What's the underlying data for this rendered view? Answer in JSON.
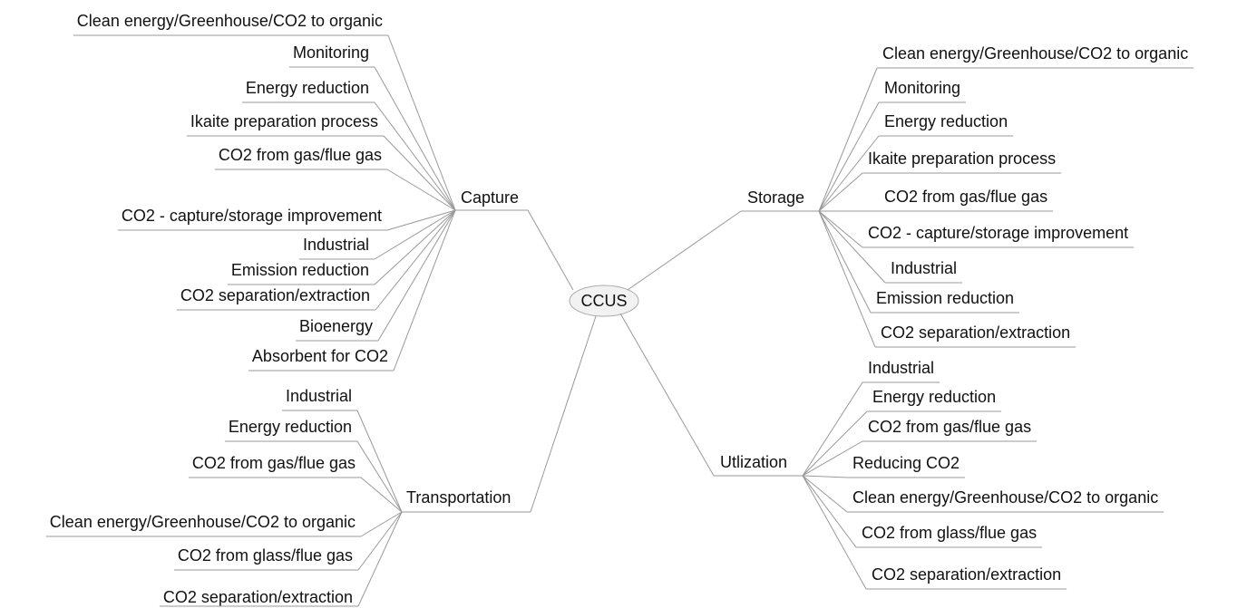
{
  "center": "CCUS",
  "branches": [
    {
      "label": "Capture",
      "children": [
        "Clean energy/Greenhouse/CO2 to organic",
        "Monitoring",
        "Energy reduction",
        "Ikaite preparation process",
        "CO2 from gas/flue gas",
        "CO2 - capture/storage improvement",
        "Industrial",
        "Emission reduction",
        "CO2 separation/extraction",
        "Bioenergy",
        "Absorbent for CO2"
      ]
    },
    {
      "label": "Storage",
      "children": [
        "Clean energy/Greenhouse/CO2 to organic",
        "Monitoring",
        "Energy reduction",
        "Ikaite preparation process",
        "CO2 from gas/flue gas",
        "CO2 - capture/storage improvement",
        "Industrial",
        "Emission reduction",
        "CO2 separation/extraction"
      ]
    },
    {
      "label": "Transportation",
      "children": [
        "Industrial",
        "Energy reduction",
        "CO2 from gas/flue gas",
        "Clean energy/Greenhouse/CO2 to organic",
        "CO2 from glass/flue gas",
        "CO2 separation/extraction"
      ]
    },
    {
      "label": "Utlization",
      "children": [
        "Industrial",
        "Energy reduction",
        "CO2 from gas/flue gas",
        "Reducing CO2",
        "Clean energy/Greenhouse/CO2 to organic",
        "CO2 from glass/flue gas",
        "CO2 separation/extraction"
      ]
    }
  ]
}
